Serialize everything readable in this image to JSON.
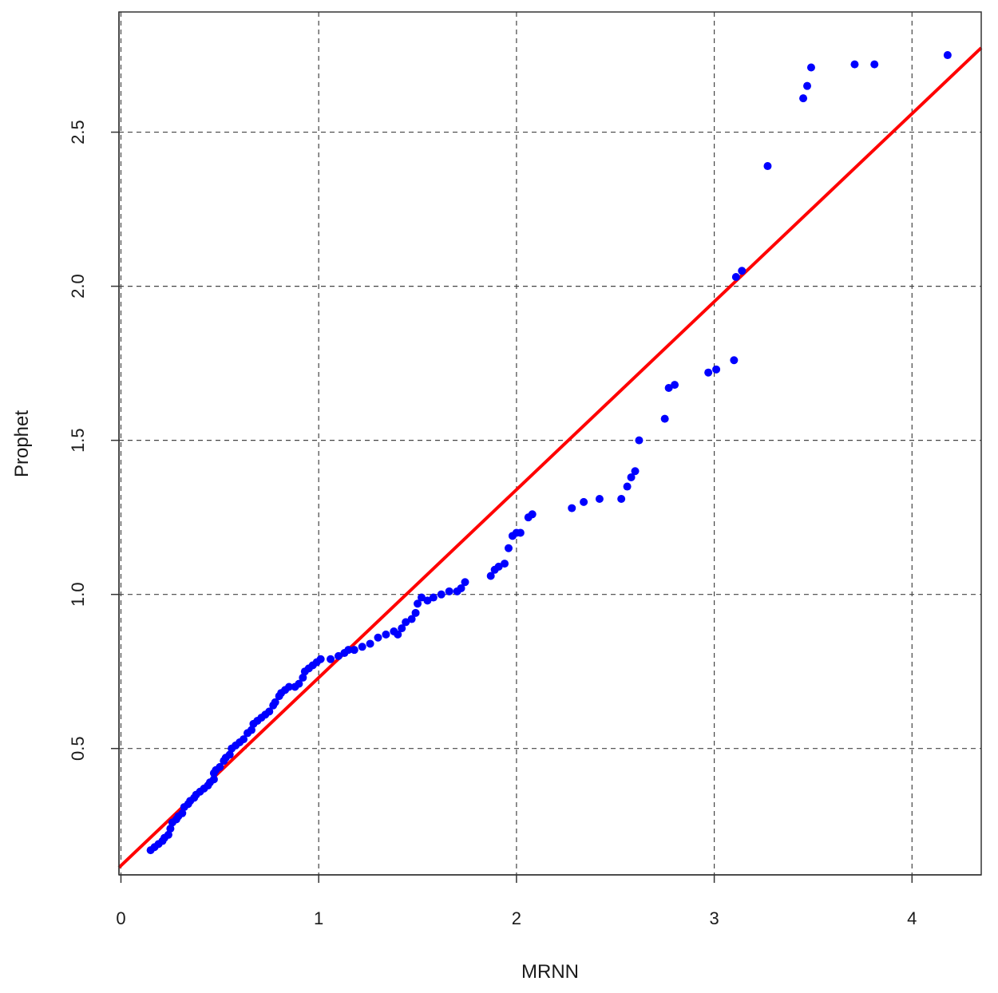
{
  "chart_data": {
    "type": "scatter",
    "title": "",
    "xlabel": "MRNN",
    "ylabel": "Prophet",
    "xlim": [
      -0.01,
      4.35
    ],
    "ylim": [
      0.09,
      2.89
    ],
    "xticks": [
      0,
      1,
      2,
      3,
      4
    ],
    "xtick_labels": [
      "0",
      "1",
      "2",
      "3",
      "4"
    ],
    "yticks": [
      0.5,
      1.0,
      1.5,
      2.0,
      2.5
    ],
    "ytick_labels": [
      "0.5",
      "1.0",
      "1.5",
      "2.0",
      "2.5"
    ],
    "grid": true,
    "point_color": "#0000ff",
    "line_color": "#ff0000",
    "reference_line": {
      "intercept": 0.12,
      "slope": 0.61
    },
    "points": [
      [
        0.15,
        0.17
      ],
      [
        0.17,
        0.18
      ],
      [
        0.19,
        0.19
      ],
      [
        0.21,
        0.2
      ],
      [
        0.22,
        0.21
      ],
      [
        0.24,
        0.22
      ],
      [
        0.25,
        0.24
      ],
      [
        0.26,
        0.26
      ],
      [
        0.28,
        0.27
      ],
      [
        0.29,
        0.28
      ],
      [
        0.31,
        0.29
      ],
      [
        0.32,
        0.31
      ],
      [
        0.34,
        0.32
      ],
      [
        0.35,
        0.33
      ],
      [
        0.37,
        0.34
      ],
      [
        0.38,
        0.35
      ],
      [
        0.4,
        0.36
      ],
      [
        0.42,
        0.37
      ],
      [
        0.44,
        0.38
      ],
      [
        0.45,
        0.39
      ],
      [
        0.47,
        0.4
      ],
      [
        0.47,
        0.42
      ],
      [
        0.48,
        0.43
      ],
      [
        0.5,
        0.44
      ],
      [
        0.52,
        0.46
      ],
      [
        0.53,
        0.47
      ],
      [
        0.55,
        0.48
      ],
      [
        0.56,
        0.5
      ],
      [
        0.58,
        0.51
      ],
      [
        0.6,
        0.52
      ],
      [
        0.62,
        0.53
      ],
      [
        0.64,
        0.55
      ],
      [
        0.66,
        0.56
      ],
      [
        0.67,
        0.58
      ],
      [
        0.69,
        0.59
      ],
      [
        0.71,
        0.6
      ],
      [
        0.73,
        0.61
      ],
      [
        0.75,
        0.62
      ],
      [
        0.77,
        0.64
      ],
      [
        0.78,
        0.65
      ],
      [
        0.8,
        0.67
      ],
      [
        0.81,
        0.68
      ],
      [
        0.83,
        0.69
      ],
      [
        0.85,
        0.7
      ],
      [
        0.88,
        0.7
      ],
      [
        0.9,
        0.71
      ],
      [
        0.92,
        0.73
      ],
      [
        0.93,
        0.75
      ],
      [
        0.95,
        0.76
      ],
      [
        0.97,
        0.77
      ],
      [
        0.99,
        0.78
      ],
      [
        1.01,
        0.79
      ],
      [
        1.06,
        0.79
      ],
      [
        1.1,
        0.8
      ],
      [
        1.13,
        0.81
      ],
      [
        1.15,
        0.82
      ],
      [
        1.18,
        0.82
      ],
      [
        1.22,
        0.83
      ],
      [
        1.26,
        0.84
      ],
      [
        1.3,
        0.86
      ],
      [
        1.34,
        0.87
      ],
      [
        1.38,
        0.88
      ],
      [
        1.4,
        0.87
      ],
      [
        1.42,
        0.89
      ],
      [
        1.44,
        0.91
      ],
      [
        1.47,
        0.92
      ],
      [
        1.49,
        0.94
      ],
      [
        1.5,
        0.97
      ],
      [
        1.52,
        0.99
      ],
      [
        1.55,
        0.98
      ],
      [
        1.58,
        0.99
      ],
      [
        1.62,
        1.0
      ],
      [
        1.66,
        1.01
      ],
      [
        1.7,
        1.01
      ],
      [
        1.72,
        1.02
      ],
      [
        1.74,
        1.04
      ],
      [
        1.87,
        1.06
      ],
      [
        1.89,
        1.08
      ],
      [
        1.91,
        1.09
      ],
      [
        1.94,
        1.1
      ],
      [
        1.96,
        1.15
      ],
      [
        1.98,
        1.19
      ],
      [
        2.0,
        1.2
      ],
      [
        2.02,
        1.2
      ],
      [
        2.06,
        1.25
      ],
      [
        2.08,
        1.26
      ],
      [
        2.28,
        1.28
      ],
      [
        2.34,
        1.3
      ],
      [
        2.42,
        1.31
      ],
      [
        2.53,
        1.31
      ],
      [
        2.56,
        1.35
      ],
      [
        2.58,
        1.38
      ],
      [
        2.6,
        1.4
      ],
      [
        2.62,
        1.5
      ],
      [
        2.75,
        1.57
      ],
      [
        2.77,
        1.67
      ],
      [
        2.8,
        1.68
      ],
      [
        2.97,
        1.72
      ],
      [
        3.01,
        1.73
      ],
      [
        3.1,
        1.76
      ],
      [
        3.11,
        2.03
      ],
      [
        3.14,
        2.05
      ],
      [
        3.27,
        2.39
      ],
      [
        3.45,
        2.61
      ],
      [
        3.47,
        2.65
      ],
      [
        3.49,
        2.71
      ],
      [
        3.71,
        2.72
      ],
      [
        3.81,
        2.72
      ],
      [
        4.18,
        2.75
      ]
    ]
  }
}
